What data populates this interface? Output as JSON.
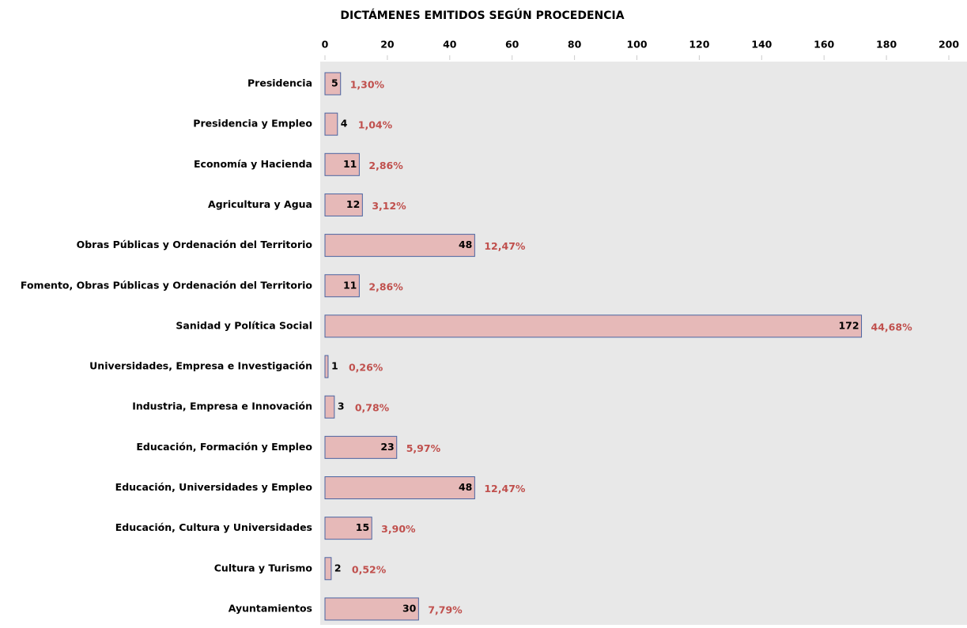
{
  "chart_data": {
    "type": "hbar",
    "title": "DICTÁMENES EMITIDOS SEGÚN PROCEDENCIA",
    "categories": [
      "Presidencia",
      "Presidencia y Empleo",
      "Economía y Hacienda",
      "Agricultura y Agua",
      "Obras Públicas y Ordenación del Territorio",
      "Fomento, Obras Públicas y Ordenación del Territorio",
      "Sanidad y Política Social",
      "Universidades, Empresa e Investigación",
      "Industria, Empresa e Innovación",
      "Educación, Formación y Empleo",
      "Educación, Universidades y Empleo",
      "Educación, Cultura y Universidades",
      "Cultura y Turismo",
      "Ayuntamientos"
    ],
    "values": [
      5,
      4,
      11,
      12,
      48,
      11,
      172,
      1,
      3,
      23,
      48,
      15,
      2,
      30
    ],
    "shares": [
      1.3,
      1.04,
      2.86,
      3.12,
      12.47,
      2.86,
      44.68,
      0.26,
      0.78,
      5.97,
      12.47,
      3.9,
      0.52,
      7.79
    ],
    "share_labels": [
      "1,30%",
      "1,04%",
      "2,86%",
      "3,12%",
      "12,47%",
      "2,86%",
      "44,68%",
      "0,26%",
      "0,78%",
      "5,97%",
      "12,47%",
      "3,90%",
      "0,52%",
      "7,79%"
    ],
    "color": "#e6b9b8",
    "edge_color": "#4a63a0",
    "share_color": "#c0504d",
    "xlim": [
      0,
      200
    ],
    "xticks": [
      0,
      20,
      40,
      60,
      80,
      100,
      120,
      140,
      160,
      180,
      200
    ]
  }
}
